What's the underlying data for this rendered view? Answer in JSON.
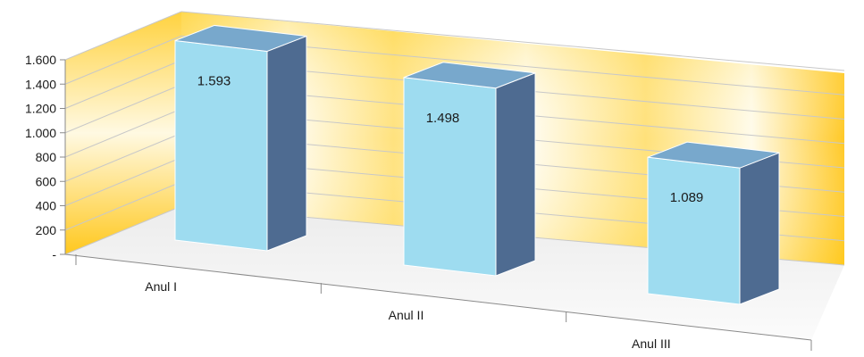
{
  "chart_data": {
    "type": "bar",
    "style": "3d-perspective",
    "categories": [
      "Anul I",
      "Anul II",
      "Anul III"
    ],
    "values": [
      1593,
      1498,
      1089
    ],
    "data_labels": [
      "1.593",
      "1.498",
      "1.089"
    ],
    "y_ticks": [
      "-",
      "200",
      "400",
      "600",
      "800",
      "1.000",
      "1.200",
      "1.400",
      "1.600"
    ],
    "ylim": [
      0,
      1600
    ],
    "title": "",
    "xlabel": "",
    "ylabel": "",
    "grid": true,
    "legend": "none",
    "colors": {
      "bar_front": "#9edcf0",
      "bar_top": "#78a8cc",
      "bar_side": "#4e6b91",
      "wall_gold": "#ffcf3a",
      "wall_light": "#fffdf4",
      "floor": "#f4f4f4",
      "gridline": "#c8c8c8",
      "axis": "#8a8a8a"
    }
  }
}
